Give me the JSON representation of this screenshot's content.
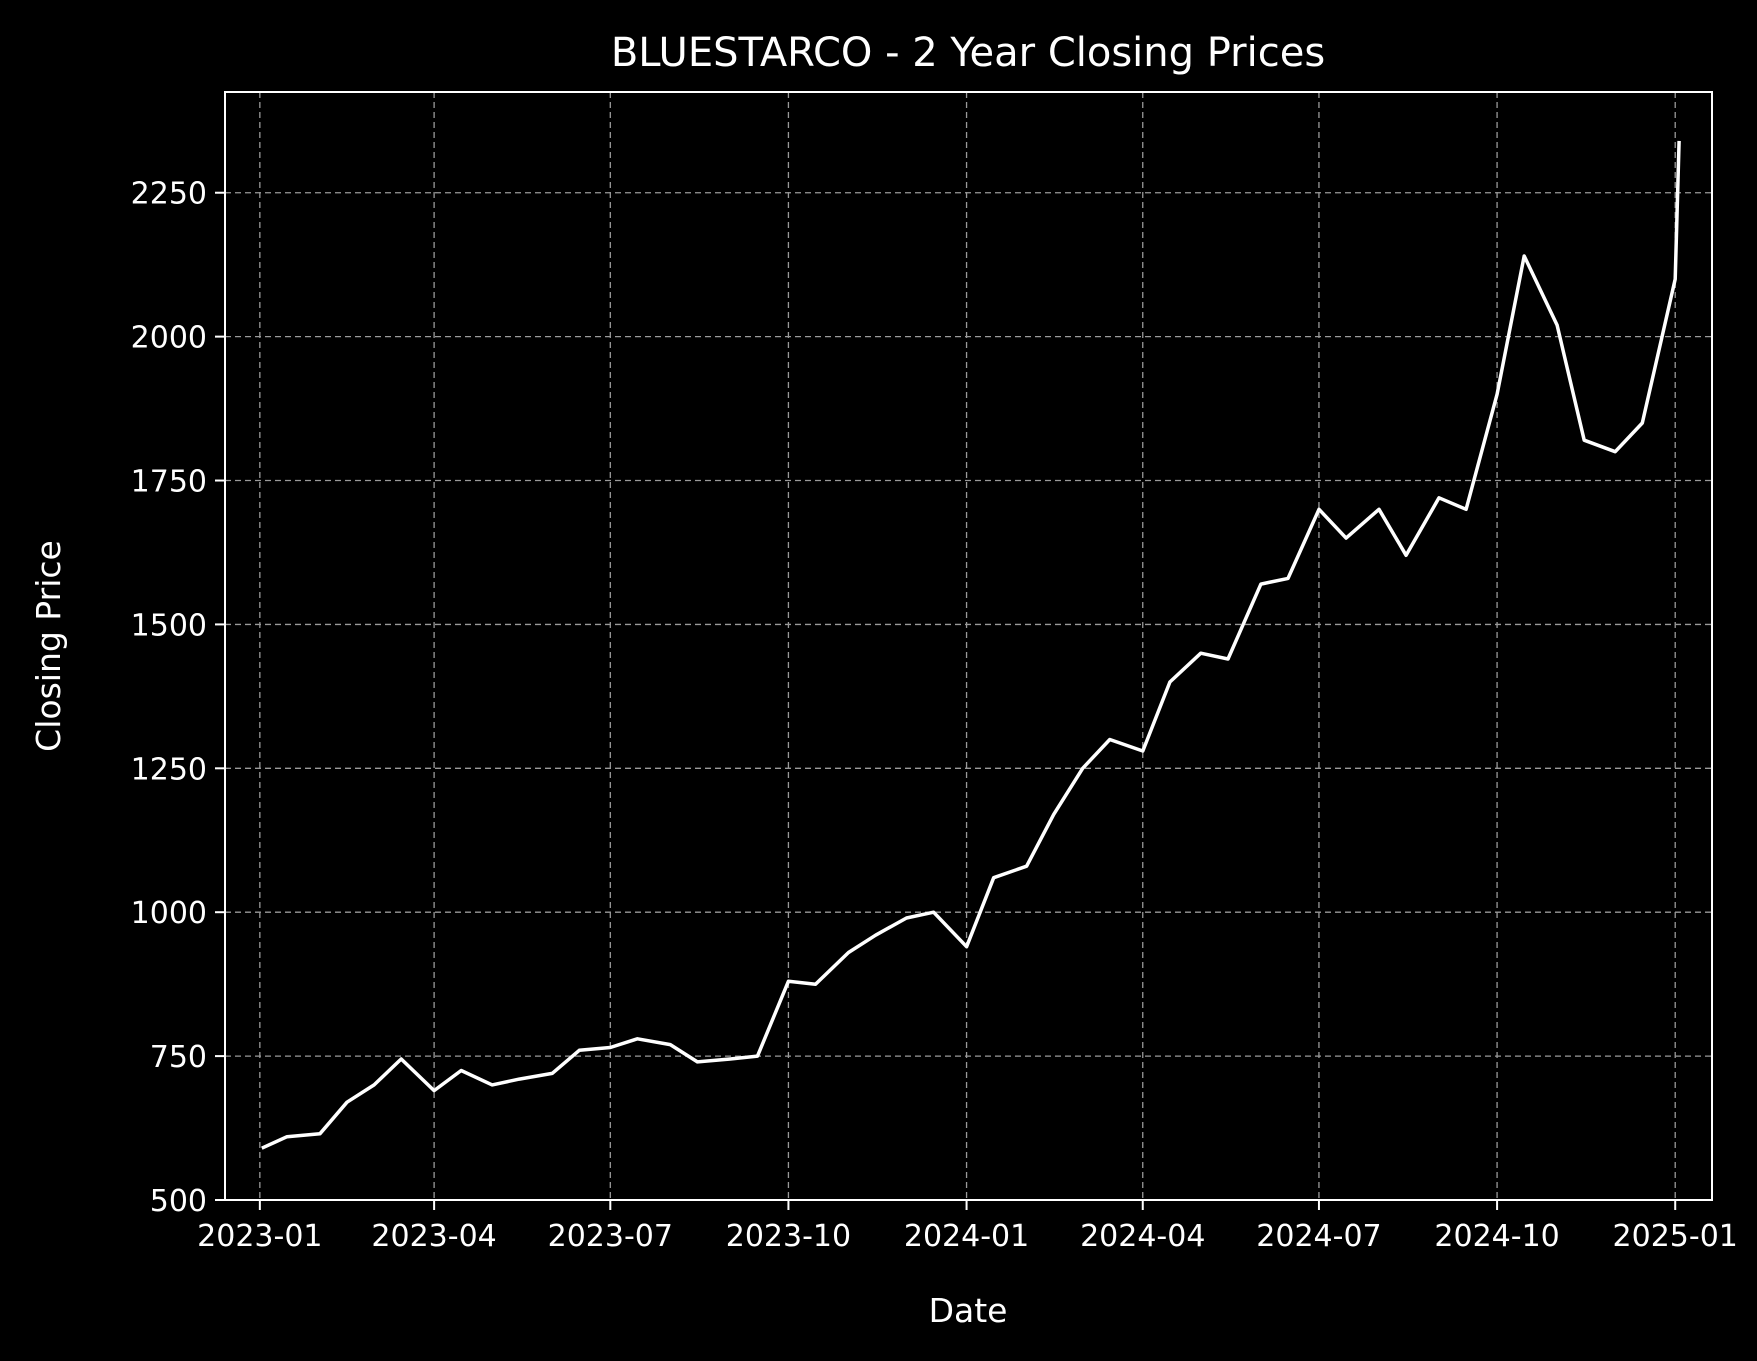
{
  "chart_data": {
    "type": "line",
    "title": "BLUESTARCO - 2 Year Closing Prices",
    "xlabel": "Date",
    "ylabel": "Closing Price",
    "x_ticks": [
      "2023-01",
      "2023-04",
      "2023-07",
      "2023-10",
      "2024-01",
      "2024-04",
      "2024-07",
      "2024-10",
      "2025-01"
    ],
    "y_ticks": [
      "500",
      "750",
      "1000",
      "1250",
      "1500",
      "1750",
      "2000",
      "2250"
    ],
    "xlim": [
      "2022-12-14",
      "2025-01-20"
    ],
    "ylim": [
      500,
      2425
    ],
    "grid": true,
    "background_color": "#000000",
    "line_color": "#ffffff",
    "grid_color": "#9a9a9a",
    "series": [
      {
        "x": [
          "2023-01-02",
          "2023-01-15",
          "2023-02-01",
          "2023-02-15",
          "2023-03-01",
          "2023-03-15",
          "2023-04-01",
          "2023-04-15",
          "2023-05-01",
          "2023-05-15",
          "2023-06-01",
          "2023-06-15",
          "2023-07-01",
          "2023-07-15",
          "2023-08-01",
          "2023-08-15",
          "2023-09-01",
          "2023-09-15",
          "2023-10-01",
          "2023-10-15",
          "2023-11-01",
          "2023-11-15",
          "2023-12-01",
          "2023-12-15",
          "2024-01-01",
          "2024-01-15",
          "2024-02-01",
          "2024-02-15",
          "2024-03-01",
          "2024-03-15",
          "2024-04-01",
          "2024-04-15",
          "2024-05-01",
          "2024-05-15",
          "2024-06-01",
          "2024-06-15",
          "2024-07-01",
          "2024-07-15",
          "2024-08-01",
          "2024-08-15",
          "2024-09-01",
          "2024-09-15",
          "2024-10-01",
          "2024-10-15",
          "2024-11-01",
          "2024-11-15",
          "2024-12-01",
          "2024-12-15",
          "2025-01-01",
          "2025-01-03"
        ],
        "values": [
          590,
          610,
          615,
          670,
          700,
          745,
          690,
          725,
          700,
          710,
          720,
          760,
          765,
          780,
          770,
          740,
          745,
          750,
          880,
          875,
          930,
          960,
          990,
          1000,
          940,
          1060,
          1080,
          1170,
          1250,
          1300,
          1280,
          1400,
          1450,
          1440,
          1570,
          1580,
          1700,
          1650,
          1700,
          1620,
          1720,
          1700,
          1900,
          2140,
          2020,
          1820,
          1800,
          1850,
          2100,
          2340
        ]
      }
    ]
  }
}
